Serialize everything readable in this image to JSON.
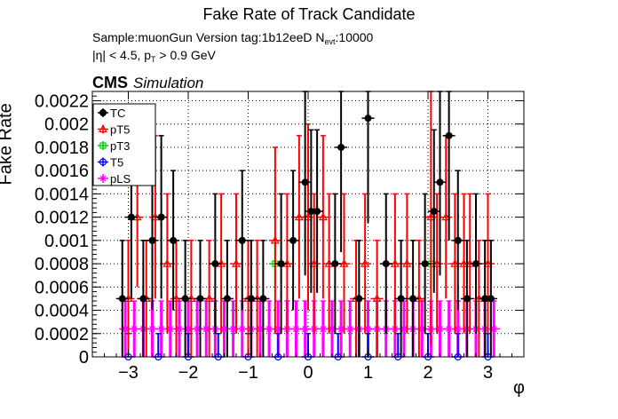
{
  "header": {
    "title": "Fake Rate of Track Candidate",
    "line1_prefix": "Sample:muonGun   Version tag:1b12eeD  N",
    "line1_sub": "evt",
    "line1_suffix": ":10000",
    "line2_prefix": "|η| < 4.5, p",
    "line2_sub": "T",
    "line2_suffix": " > 0.9 GeV",
    "cms_label": "CMS",
    "cms_sub": "Simulation"
  },
  "chart_data": {
    "type": "scatter",
    "title": "Fake Rate of Track Candidate",
    "xlabel": "φ",
    "ylabel": "Fake Rate",
    "xlim": [
      -3.6,
      3.6
    ],
    "ylim": [
      0,
      0.00228
    ],
    "xticks": [
      -3,
      -2,
      -1,
      0,
      1,
      2,
      3
    ],
    "xtick_labels": [
      "−3",
      "−2",
      "−1",
      "0",
      "1",
      "2",
      "3"
    ],
    "yticks": [
      0,
      0.0002,
      0.0004,
      0.0006,
      0.0008,
      0.001,
      0.0012,
      0.0014,
      0.0016,
      0.0018,
      0.002,
      0.0022
    ],
    "ytick_labels": [
      "0",
      "0.0002",
      "0.0004",
      "0.0006",
      "0.0008",
      "0.001",
      "0.0012",
      "0.0014",
      "0.0016",
      "0.0018",
      "0.002",
      "0.0022"
    ],
    "grid": true,
    "legend_position": "top-left",
    "series": [
      {
        "name": "TC",
        "color": "#000000",
        "marker": "circle-filled",
        "x": [
          -3.1,
          -2.95,
          -2.75,
          -2.6,
          -2.45,
          -2.25,
          -2.05,
          -1.8,
          -1.55,
          -1.35,
          -1.1,
          -0.95,
          -0.75,
          -0.45,
          -0.25,
          -0.05,
          0.05,
          0.15,
          0.45,
          0.55,
          0.85,
          1.0,
          1.3,
          1.55,
          1.75,
          1.95,
          2.1,
          2.2,
          2.35,
          2.5,
          2.65,
          2.8,
          2.95,
          3.05
        ],
        "y": [
          0.0005,
          0.0012,
          0.0005,
          0.001,
          0.0012,
          0.001,
          0.0005,
          0.0005,
          0.0008,
          0.0005,
          0.001,
          0.0005,
          0.0005,
          0.0008,
          0.001,
          0.0015,
          0.00125,
          0.00125,
          0.0008,
          0.0018,
          0.0005,
          0.00205,
          0.0008,
          0.0005,
          0.0005,
          0.0008,
          0.00125,
          0.0015,
          0.0019,
          0.001,
          0.0005,
          0.0008,
          0.0005,
          0.0005
        ],
        "err": [
          0.0005,
          0.0007,
          0.0005,
          0.0006,
          0.0007,
          0.0006,
          0.0005,
          0.0005,
          0.0006,
          0.0005,
          0.0006,
          0.0005,
          0.0005,
          0.0006,
          0.0006,
          0.0008,
          0.0007,
          0.0007,
          0.0006,
          0.0009,
          0.0005,
          0.0009,
          0.0006,
          0.0005,
          0.0005,
          0.0006,
          0.0007,
          0.0008,
          0.0009,
          0.0006,
          0.0005,
          0.0006,
          0.0005,
          0.0005
        ]
      },
      {
        "name": "pT5",
        "color": "#ff0000",
        "marker": "triangle-open",
        "x": [
          -3.0,
          -2.85,
          -2.7,
          -2.55,
          -2.35,
          -2.2,
          -1.95,
          -1.65,
          -1.45,
          -1.2,
          -1.0,
          -0.85,
          -0.55,
          -0.35,
          -0.15,
          0.0,
          0.1,
          0.25,
          0.35,
          0.6,
          0.8,
          0.95,
          1.15,
          1.45,
          1.65,
          1.85,
          2.05,
          2.15,
          2.3,
          2.45,
          2.6,
          2.7,
          2.85,
          3.0
        ],
        "y": [
          0.0005,
          0.0012,
          0.0005,
          0.0012,
          0.0008,
          0.0005,
          0.0005,
          0.0005,
          0.0008,
          0.0008,
          0.0005,
          0.0005,
          0.001,
          0.0008,
          0.0012,
          0.0012,
          0.0008,
          0.0012,
          0.0008,
          0.0008,
          0.0005,
          0.0008,
          0.0005,
          0.0008,
          0.0008,
          0.0005,
          0.0012,
          0.0008,
          0.0012,
          0.0008,
          0.0008,
          0.0008,
          0.0005,
          0.0008
        ],
        "err": [
          0.0005,
          0.0006,
          0.0005,
          0.0007,
          0.0006,
          0.0005,
          0.0005,
          0.0005,
          0.0006,
          0.0006,
          0.0005,
          0.0005,
          0.0008,
          0.0006,
          0.0007,
          0.0008,
          0.0006,
          0.0007,
          0.0006,
          0.0006,
          0.0005,
          0.0006,
          0.0005,
          0.0006,
          0.0006,
          0.0005,
          0.0011,
          0.0006,
          0.0007,
          0.0006,
          0.0006,
          0.0006,
          0.0005,
          0.0006
        ]
      },
      {
        "name": "pT3",
        "color": "#00cc00",
        "marker": "square-open",
        "x": [
          -0.55,
          2.05
        ],
        "y": [
          0.0008,
          0.0008
        ],
        "err": [
          0.0002,
          0.0002
        ]
      },
      {
        "name": "T5",
        "color": "#0000ff",
        "marker": "circle-open",
        "x": [
          -3.0,
          -2.5,
          -2.0,
          -1.5,
          -1.0,
          -0.5,
          0.0,
          0.5,
          1.0,
          1.5,
          2.0,
          2.5,
          3.0
        ],
        "y": [
          0,
          0,
          0,
          0,
          0,
          0,
          0,
          0,
          0,
          0,
          0,
          0,
          0
        ],
        "err": [
          0.0002,
          0.0002,
          0.0002,
          0.0002,
          0.0002,
          0.0002,
          0.0002,
          0.0002,
          0.0002,
          0.0002,
          0.0002,
          0.0002,
          0.0002
        ]
      },
      {
        "name": "pLS",
        "color": "#ff00ff",
        "marker": "star",
        "x": [
          -3.05,
          -2.9,
          -2.75,
          -2.6,
          -2.45,
          -2.3,
          -2.15,
          -2.0,
          -1.85,
          -1.7,
          -1.55,
          -1.4,
          -1.25,
          -1.1,
          -0.95,
          -0.8,
          -0.65,
          -0.5,
          -0.35,
          -0.2,
          -0.05,
          0.1,
          0.25,
          0.4,
          0.55,
          0.7,
          0.85,
          1.0,
          1.15,
          1.3,
          1.45,
          1.6,
          1.75,
          1.9,
          2.05,
          2.2,
          2.35,
          2.5,
          2.65,
          2.8,
          2.95,
          3.1
        ],
        "y": [
          0.00024,
          0.00024,
          0.00024,
          0.00024,
          0.00024,
          0.00024,
          0.00024,
          0.00024,
          0.00024,
          0.00024,
          0.00024,
          0.00024,
          0.00024,
          0.00024,
          0.00024,
          0.00024,
          0.00024,
          0.00024,
          0.00024,
          0.00024,
          0.00024,
          0.00024,
          0.00024,
          0.00024,
          0.00024,
          0.00024,
          0.00024,
          0.00024,
          0.00024,
          0.00024,
          0.00024,
          0.00024,
          0.00024,
          0.00024,
          0.00024,
          0.00024,
          0.00024,
          0.00024,
          0.00024,
          0.00024,
          0.00024,
          0.00024
        ],
        "err": [
          0.00024,
          0.00024,
          0.00024,
          0.00024,
          0.00024,
          0.00024,
          0.00024,
          0.00024,
          0.00024,
          0.00024,
          0.00024,
          0.00024,
          0.00024,
          0.00024,
          0.00024,
          0.00024,
          0.00024,
          0.00024,
          0.00024,
          0.00024,
          0.00024,
          0.00024,
          0.00024,
          0.00024,
          0.00024,
          0.00024,
          0.00024,
          0.00024,
          0.00024,
          0.00024,
          0.00024,
          0.00024,
          0.00024,
          0.00024,
          0.00024,
          0.00024,
          0.00024,
          0.00024,
          0.00024,
          0.00024,
          0.00024,
          0.00024
        ]
      }
    ]
  }
}
